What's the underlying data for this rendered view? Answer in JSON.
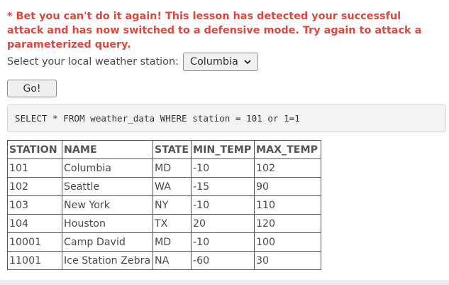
{
  "lesson": {
    "warning_text": "* Bet you can't do it again! This lesson has detected your successful attack and has now switched to a defensive mode. Try again to attack a parameterized query."
  },
  "station_form": {
    "label": "Select your local weather station:",
    "selected_station": "Columbia",
    "go_label": "Go!"
  },
  "query": {
    "sql": "SELECT * FROM weather_data WHERE station = 101 or 1=1"
  },
  "results": {
    "headers": [
      "STATION",
      "NAME",
      "STATE",
      "MIN_TEMP",
      "MAX_TEMP"
    ],
    "rows": [
      [
        "101",
        "Columbia",
        "MD",
        "-10",
        "102"
      ],
      [
        "102",
        "Seattle",
        "WA",
        "-15",
        "90"
      ],
      [
        "103",
        "New York",
        "NY",
        "-10",
        "110"
      ],
      [
        "104",
        "Houston",
        "TX",
        "20",
        "120"
      ],
      [
        "10001",
        "Camp David",
        "MD",
        "-10",
        "100"
      ],
      [
        "11001",
        "Ice Station Zebra",
        "NA",
        "-60",
        "30"
      ]
    ]
  },
  "icons": {
    "dropdown": "chevron-down-icon"
  },
  "colors": {
    "warning": "#e0463c"
  }
}
